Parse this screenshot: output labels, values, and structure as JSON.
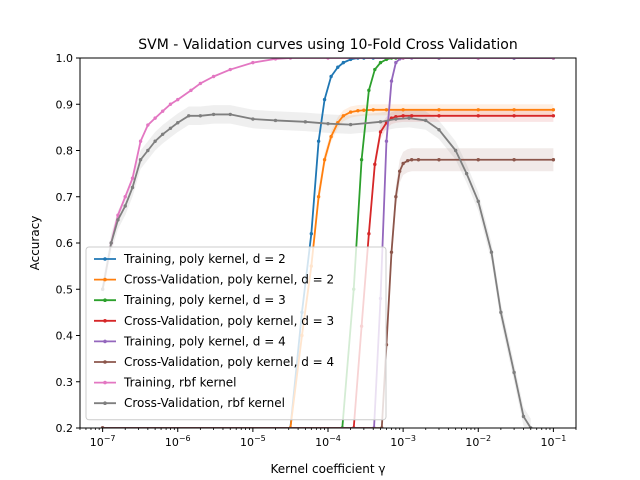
{
  "chart_data": {
    "type": "line",
    "title": "SVM - Validation curves using 10-Fold Cross Validation",
    "xlabel": "Kernel coefficient γ",
    "ylabel": "Accuracy",
    "xscale": "log",
    "xlim": [
      5e-08,
      0.2
    ],
    "ylim": [
      0.2,
      1.0
    ],
    "xtick_values": [
      1e-07,
      1e-06,
      1e-05,
      0.0001,
      0.001,
      0.01,
      0.1
    ],
    "xtick_labels": [
      {
        "base": "10",
        "exp": "−7"
      },
      {
        "base": "10",
        "exp": "−6"
      },
      {
        "base": "10",
        "exp": "−5"
      },
      {
        "base": "10",
        "exp": "−4"
      },
      {
        "base": "10",
        "exp": "−3"
      },
      {
        "base": "10",
        "exp": "−2"
      },
      {
        "base": "10",
        "exp": "−1"
      }
    ],
    "ytick_values": [
      0.2,
      0.3,
      0.4,
      0.5,
      0.6,
      0.7,
      0.8,
      0.9,
      1.0
    ],
    "ytick_labels": [
      "0.2",
      "0.3",
      "0.4",
      "0.5",
      "0.6",
      "0.7",
      "0.8",
      "0.9",
      "1.0"
    ],
    "legend_position": "lower-left",
    "grid": false,
    "series": [
      {
        "name": "Training, poly kernel, d = 2",
        "color": "#1f77b4",
        "x": [
          1e-07,
          3.16e-05,
          4.5e-05,
          6e-05,
          7.5e-05,
          9e-05,
          0.00011,
          0.000135,
          0.00016,
          0.0002,
          0.00025,
          0.0003,
          0.0004,
          0.0006,
          0.001,
          0.003,
          0.01,
          0.03,
          0.1
        ],
        "y": [
          0.2,
          0.2,
          0.45,
          0.62,
          0.82,
          0.91,
          0.96,
          0.98,
          0.99,
          0.997,
          1.0,
          1.0,
          1.0,
          1.0,
          1.0,
          1.0,
          1.0,
          1.0,
          1.0
        ],
        "band": [
          0,
          0,
          0,
          0,
          0,
          0,
          0,
          0,
          0,
          0,
          0,
          0,
          0,
          0,
          0,
          0,
          0,
          0,
          0
        ]
      },
      {
        "name": "Cross-Validation, poly kernel, d = 2",
        "color": "#ff7f0e",
        "x": [
          1e-07,
          3.16e-05,
          4.5e-05,
          6e-05,
          7.5e-05,
          9e-05,
          0.00011,
          0.000135,
          0.00016,
          0.0002,
          0.00025,
          0.0003,
          0.0004,
          0.0006,
          0.001,
          0.003,
          0.01,
          0.03,
          0.1
        ],
        "y": [
          0.2,
          0.2,
          0.4,
          0.55,
          0.7,
          0.78,
          0.83,
          0.86,
          0.875,
          0.883,
          0.886,
          0.887,
          0.888,
          0.888,
          0.888,
          0.888,
          0.888,
          0.888,
          0.888
        ],
        "band": [
          0,
          0,
          0.02,
          0.02,
          0.02,
          0.015,
          0.012,
          0.012,
          0.012,
          0.012,
          0.012,
          0.012,
          0.012,
          0.012,
          0.012,
          0.012,
          0.012,
          0.012,
          0.012
        ]
      },
      {
        "name": "Training, poly kernel, d = 3",
        "color": "#2ca02c",
        "x": [
          1e-07,
          0.000155,
          0.00022,
          0.00028,
          0.00035,
          0.00042,
          0.0005,
          0.0006,
          0.0007,
          0.0008,
          0.001,
          0.003,
          0.01,
          0.03,
          0.1
        ],
        "y": [
          0.2,
          0.2,
          0.5,
          0.78,
          0.93,
          0.975,
          0.99,
          0.997,
          1.0,
          1.0,
          1.0,
          1.0,
          1.0,
          1.0,
          1.0
        ],
        "band": [
          0,
          0,
          0,
          0,
          0,
          0,
          0,
          0,
          0,
          0,
          0,
          0,
          0,
          0,
          0
        ]
      },
      {
        "name": "Cross-Validation, poly kernel, d = 3",
        "color": "#d62728",
        "x": [
          1e-07,
          0.00022,
          0.00028,
          0.00035,
          0.00042,
          0.0005,
          0.0006,
          0.0007,
          0.0008,
          0.001,
          0.0013,
          0.003,
          0.01,
          0.03,
          0.1
        ],
        "y": [
          0.2,
          0.2,
          0.42,
          0.62,
          0.77,
          0.84,
          0.86,
          0.87,
          0.873,
          0.875,
          0.875,
          0.875,
          0.875,
          0.875,
          0.875
        ],
        "band": [
          0,
          0,
          0.02,
          0.02,
          0.015,
          0.015,
          0.013,
          0.013,
          0.013,
          0.013,
          0.013,
          0.013,
          0.013,
          0.013,
          0.013
        ]
      },
      {
        "name": "Training, poly kernel, d = 4",
        "color": "#9467bd",
        "x": [
          1e-07,
          0.00041,
          0.0005,
          0.0006,
          0.0007,
          0.0008,
          0.0009,
          0.001,
          0.0013,
          0.003,
          0.01,
          0.03,
          0.1
        ],
        "y": [
          0.2,
          0.2,
          0.48,
          0.82,
          0.95,
          0.99,
          0.998,
          1.0,
          1.0,
          1.0,
          1.0,
          1.0,
          1.0
        ],
        "band": [
          0,
          0,
          0,
          0,
          0,
          0,
          0,
          0,
          0,
          0,
          0,
          0,
          0
        ]
      },
      {
        "name": "Cross-Validation, poly kernel, d = 4",
        "color": "#8c564b",
        "x": [
          1e-07,
          0.00052,
          0.0006,
          0.0007,
          0.0008,
          0.0009,
          0.001,
          0.00115,
          0.0013,
          0.0016,
          0.003,
          0.01,
          0.03,
          0.1
        ],
        "y": [
          0.2,
          0.2,
          0.38,
          0.58,
          0.7,
          0.755,
          0.772,
          0.778,
          0.78,
          0.78,
          0.78,
          0.78,
          0.78,
          0.78
        ],
        "band": [
          0,
          0,
          0.02,
          0.025,
          0.025,
          0.025,
          0.025,
          0.025,
          0.025,
          0.025,
          0.025,
          0.025,
          0.025,
          0.025
        ]
      },
      {
        "name": "Training, rbf kernel",
        "color": "#e377c2",
        "x": [
          1e-07,
          1.3e-07,
          1.6e-07,
          2e-07,
          2.5e-07,
          3.2e-07,
          4e-07,
          5e-07,
          6.3e-07,
          8e-07,
          1e-06,
          1.5e-06,
          2e-06,
          3e-06,
          5e-06,
          1e-05,
          2e-05,
          3.16e-05,
          0.0001,
          0.001,
          0.01,
          0.1
        ],
        "y": [
          0.5,
          0.6,
          0.66,
          0.7,
          0.74,
          0.82,
          0.855,
          0.87,
          0.885,
          0.9,
          0.91,
          0.93,
          0.945,
          0.96,
          0.975,
          0.99,
          0.998,
          1.0,
          1.0,
          1.0,
          1.0,
          1.0
        ],
        "band": [
          0,
          0,
          0,
          0,
          0,
          0,
          0,
          0,
          0,
          0,
          0,
          0,
          0,
          0,
          0,
          0,
          0,
          0,
          0,
          0,
          0,
          0
        ]
      },
      {
        "name": "Cross-Validation, rbf kernel",
        "color": "#7f7f7f",
        "x": [
          1e-07,
          1.3e-07,
          1.6e-07,
          2e-07,
          2.5e-07,
          3.2e-07,
          4e-07,
          5e-07,
          6.3e-07,
          8e-07,
          1e-06,
          1.4e-06,
          2e-06,
          3e-06,
          5e-06,
          1e-05,
          2e-05,
          5e-05,
          0.0001,
          0.0002,
          0.0005,
          0.0008,
          0.0012,
          0.002,
          0.003,
          0.005,
          0.007,
          0.01,
          0.015,
          0.02,
          0.03,
          0.04,
          0.05
        ],
        "y": [
          0.5,
          0.6,
          0.65,
          0.68,
          0.72,
          0.78,
          0.8,
          0.82,
          0.835,
          0.848,
          0.86,
          0.875,
          0.875,
          0.878,
          0.878,
          0.868,
          0.865,
          0.862,
          0.858,
          0.856,
          0.862,
          0.868,
          0.87,
          0.865,
          0.845,
          0.8,
          0.75,
          0.69,
          0.58,
          0.45,
          0.32,
          0.225,
          0.2
        ],
        "band": [
          0.02,
          0.02,
          0.02,
          0.02,
          0.02,
          0.02,
          0.02,
          0.02,
          0.02,
          0.02,
          0.02,
          0.02,
          0.02,
          0.02,
          0.02,
          0.02,
          0.02,
          0.02,
          0.02,
          0.02,
          0.02,
          0.02,
          0.02,
          0.02,
          0.02,
          0.02,
          0.02,
          0.02,
          0.02,
          0.02,
          0.02,
          0.02,
          0.02
        ]
      }
    ]
  }
}
